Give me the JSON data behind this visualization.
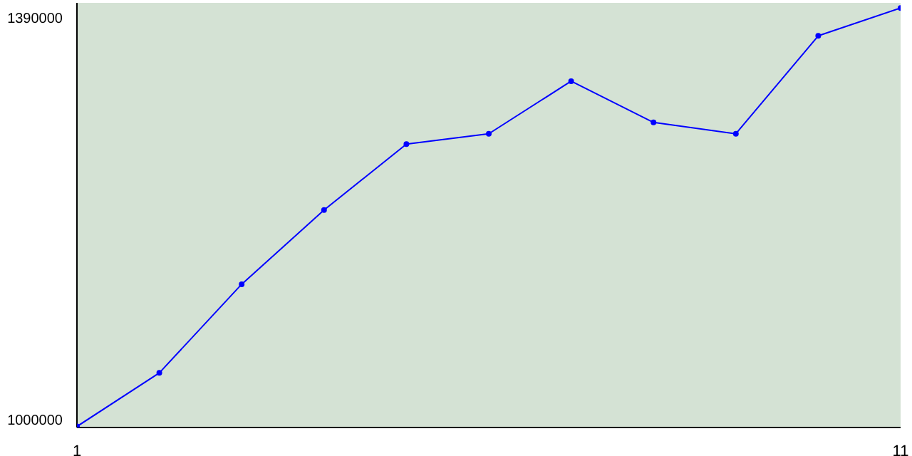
{
  "chart_data": {
    "type": "line",
    "x": [
      1,
      2,
      3,
      4,
      5,
      6,
      7,
      8,
      9,
      10,
      11
    ],
    "series": [
      {
        "color": "#0000ff",
        "values": [
          993000,
          1045000,
          1131000,
          1203000,
          1267000,
          1277000,
          1328000,
          1288000,
          1277000,
          1372000,
          1399000
        ]
      }
    ],
    "xlim": [
      1,
      11
    ],
    "xticks": [
      1,
      11
    ],
    "ylim": [
      992000,
      1404000
    ],
    "yticks": [
      1000000,
      1390000
    ],
    "grid": false,
    "legend": false,
    "marker": "circle",
    "line_style": "solid"
  }
}
